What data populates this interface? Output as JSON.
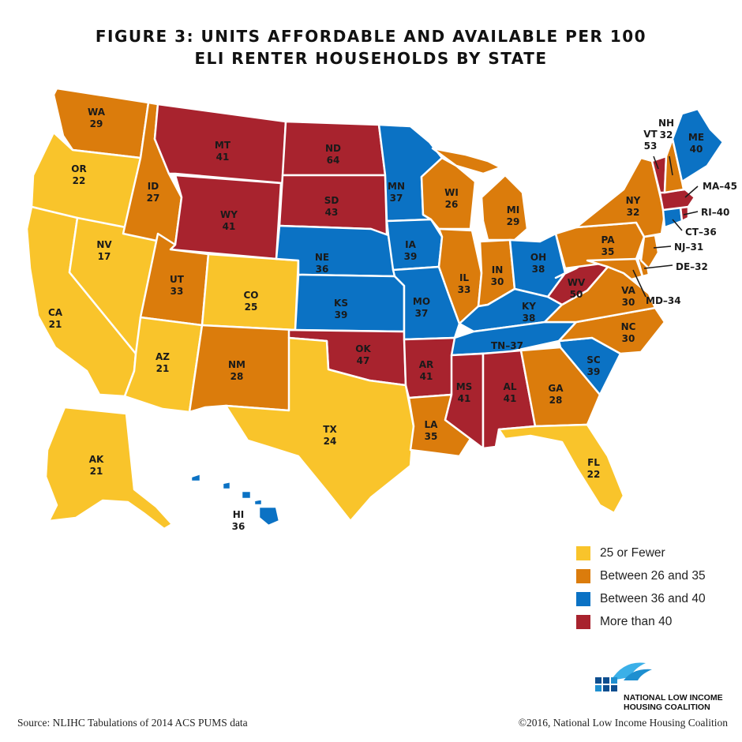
{
  "title": {
    "line1": "FIGURE 3: UNITS AFFORDABLE AND AVAILABLE PER 100",
    "line2": "ELI RENTER HOUSEHOLDS BY STATE"
  },
  "colors": {
    "c1": "#F9C42B",
    "c2": "#DB7C0C",
    "c3": "#0B72C4",
    "c4": "#A8232E"
  },
  "legend": [
    {
      "label": "25 or Fewer",
      "color": "#F9C42B"
    },
    {
      "label": "Between 26 and 35",
      "color": "#DB7C0C"
    },
    {
      "label": "Between 36 and 40",
      "color": "#0B72C4"
    },
    {
      "label": "More than 40",
      "color": "#A8232E"
    }
  ],
  "states": {
    "WA": {
      "abbr": "WA",
      "value": "29"
    },
    "OR": {
      "abbr": "OR",
      "value": "22"
    },
    "CA": {
      "abbr": "CA",
      "value": "21"
    },
    "NV": {
      "abbr": "NV",
      "value": "17"
    },
    "ID": {
      "abbr": "ID",
      "value": "27"
    },
    "MT": {
      "abbr": "MT",
      "value": "41"
    },
    "WY": {
      "abbr": "WY",
      "value": "41"
    },
    "UT": {
      "abbr": "UT",
      "value": "33"
    },
    "AZ": {
      "abbr": "AZ",
      "value": "21"
    },
    "CO": {
      "abbr": "CO",
      "value": "25"
    },
    "NM": {
      "abbr": "NM",
      "value": "28"
    },
    "ND": {
      "abbr": "ND",
      "value": "64"
    },
    "SD": {
      "abbr": "SD",
      "value": "43"
    },
    "NE": {
      "abbr": "NE",
      "value": "36"
    },
    "KS": {
      "abbr": "KS",
      "value": "39"
    },
    "OK": {
      "abbr": "OK",
      "value": "47"
    },
    "TX": {
      "abbr": "TX",
      "value": "24"
    },
    "MN": {
      "abbr": "MN",
      "value": "37"
    },
    "IA": {
      "abbr": "IA",
      "value": "39"
    },
    "MO": {
      "abbr": "MO",
      "value": "37"
    },
    "AR": {
      "abbr": "AR",
      "value": "41"
    },
    "LA": {
      "abbr": "LA",
      "value": "35"
    },
    "WI": {
      "abbr": "WI",
      "value": "26"
    },
    "IL": {
      "abbr": "IL",
      "value": "33"
    },
    "MI": {
      "abbr": "MI",
      "value": "29"
    },
    "IN": {
      "abbr": "IN",
      "value": "30"
    },
    "OH": {
      "abbr": "OH",
      "value": "38"
    },
    "KY": {
      "abbr": "KY",
      "value": "38"
    },
    "TN": {
      "abbr": "TN",
      "value": "37"
    },
    "MS": {
      "abbr": "MS",
      "value": "41"
    },
    "AL": {
      "abbr": "AL",
      "value": "41"
    },
    "GA": {
      "abbr": "GA",
      "value": "28"
    },
    "FL": {
      "abbr": "FL",
      "value": "22"
    },
    "SC": {
      "abbr": "SC",
      "value": "39"
    },
    "NC": {
      "abbr": "NC",
      "value": "30"
    },
    "VA": {
      "abbr": "VA",
      "value": "30"
    },
    "WV": {
      "abbr": "WV",
      "value": "50"
    },
    "PA": {
      "abbr": "PA",
      "value": "35"
    },
    "NY": {
      "abbr": "NY",
      "value": "32"
    },
    "VT": {
      "abbr": "VT",
      "value": "53"
    },
    "NH": {
      "abbr": "NH",
      "value": "32"
    },
    "ME": {
      "abbr": "ME",
      "value": "40"
    },
    "AK": {
      "abbr": "AK",
      "value": "21"
    },
    "HI": {
      "abbr": "HI",
      "value": "36"
    }
  },
  "callouts": {
    "MA": "MA–45",
    "RI": "RI–40",
    "CT": "CT–36",
    "NJ": "NJ–31",
    "DE": "DE–32",
    "MD": "MD–34",
    "TN": "TN–37"
  },
  "logo": {
    "line1": "NATIONAL LOW INCOME",
    "line2": "HOUSING COALITION"
  },
  "source": "Source: NLIHC Tabulations of 2014 ACS PUMS data",
  "copyright": "©2016, National Low Income Housing Coalition"
}
